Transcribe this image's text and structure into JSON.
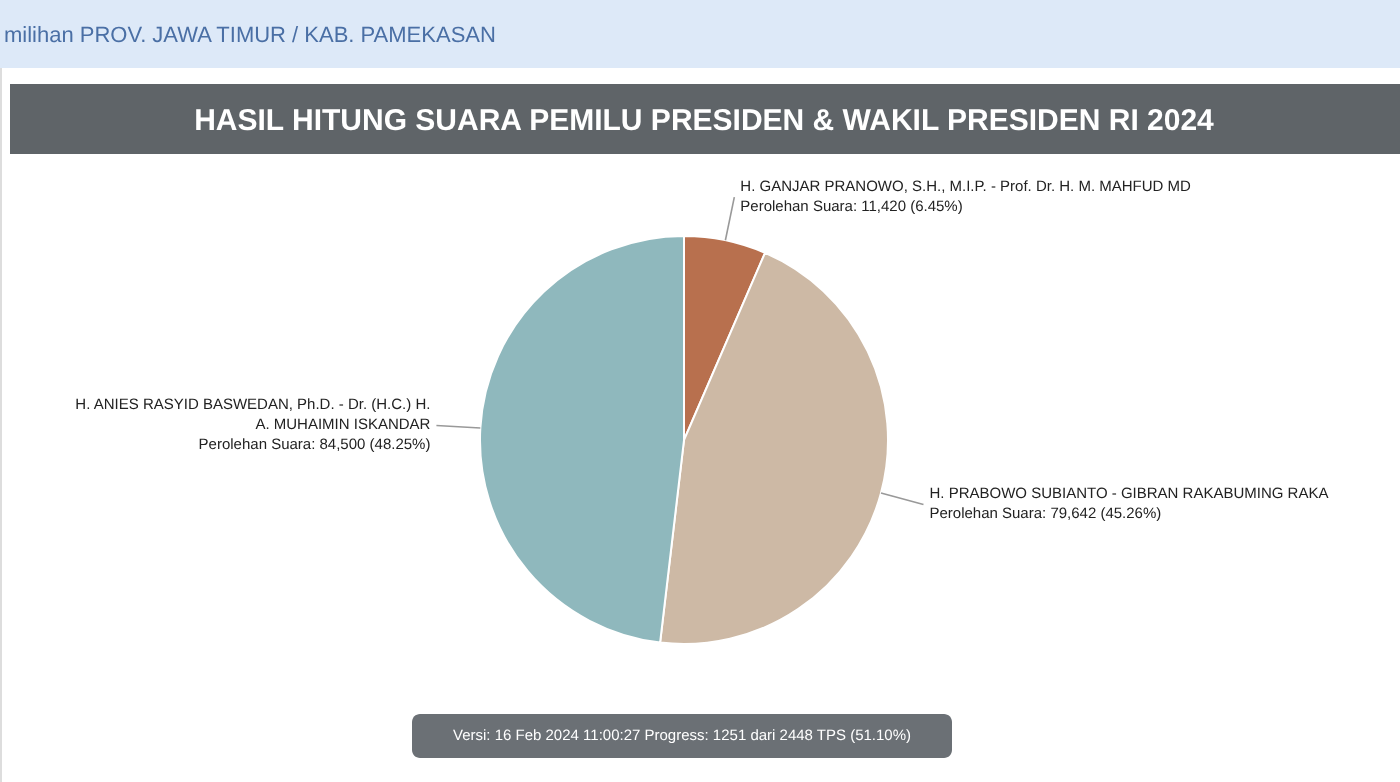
{
  "chart_data": {
    "type": "pie",
    "title": "HASIL HITUNG SUARA PEMILU PRESIDEN & WAKIL PRESIDEN RI 2024",
    "categories": [
      "H. GANJAR PRANOWO, S.H., M.I.P. - Prof. Dr. H. M. MAHFUD MD",
      "H. PRABOWO SUBIANTO - GIBRAN RAKABUMING RAKA",
      "H. ANIES RASYID BASWEDAN, Ph.D. - Dr. (H.C.) H. A. MUHAIMIN ISKANDAR"
    ],
    "values": [
      11420,
      79642,
      84500
    ],
    "value_labels": [
      "Perolehan Suara: 11,420 (6.45%)",
      "Perolehan Suara: 79,642 (45.26%)",
      "Perolehan Suara: 84,500 (48.25%)"
    ],
    "colors": [
      "#b8704e",
      "#cdb9a5",
      "#8fb8bd"
    ],
    "annotations": [
      "milihan  PROV. JAWA TIMUR  /  KAB. PAMEKASAN",
      "Versi: 16 Feb 2024 11:00:27 Progress: 1251 dari 2448 TPS (51.10%)"
    ]
  }
}
